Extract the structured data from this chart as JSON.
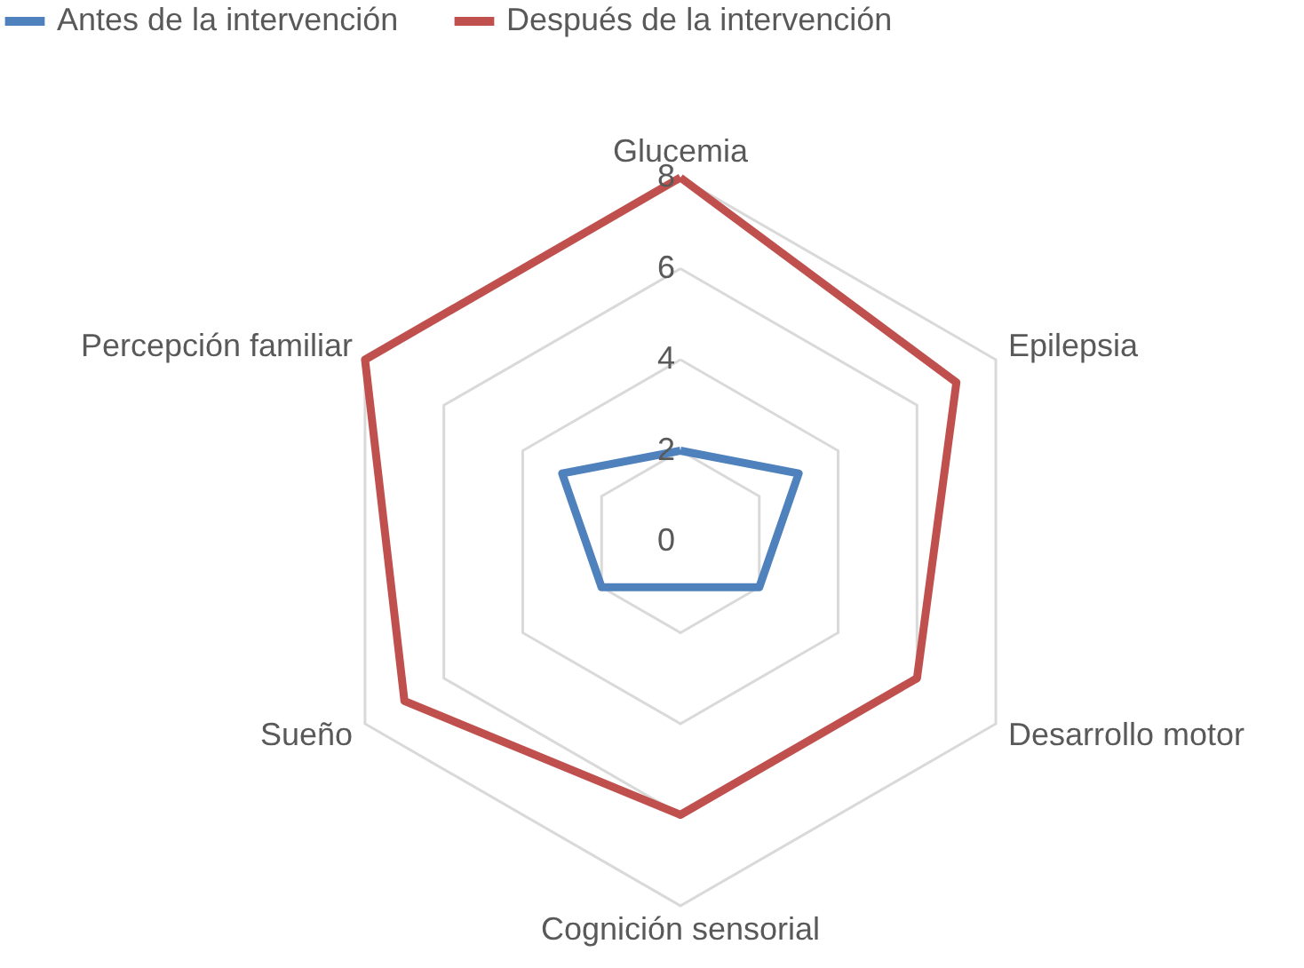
{
  "chart_data": {
    "type": "radar",
    "categories": [
      "Glucemia",
      "Epilepsia",
      "Desarrollo motor",
      "Cognición sensorial",
      "Sueño",
      "Percepción familiar"
    ],
    "series": [
      {
        "name": "Antes de la intervención",
        "color": "#4f81bd",
        "values": [
          2,
          3,
          2,
          1,
          2,
          3
        ]
      },
      {
        "name": "Después de la intervención",
        "color": "#c0504d",
        "values": [
          8,
          7,
          6,
          6,
          7,
          8
        ]
      }
    ],
    "ylim": [
      0,
      8
    ],
    "yticks": [
      0,
      2,
      4,
      6,
      8
    ],
    "grid": true,
    "legend": "top",
    "line_style": "solid",
    "marker": "none"
  }
}
